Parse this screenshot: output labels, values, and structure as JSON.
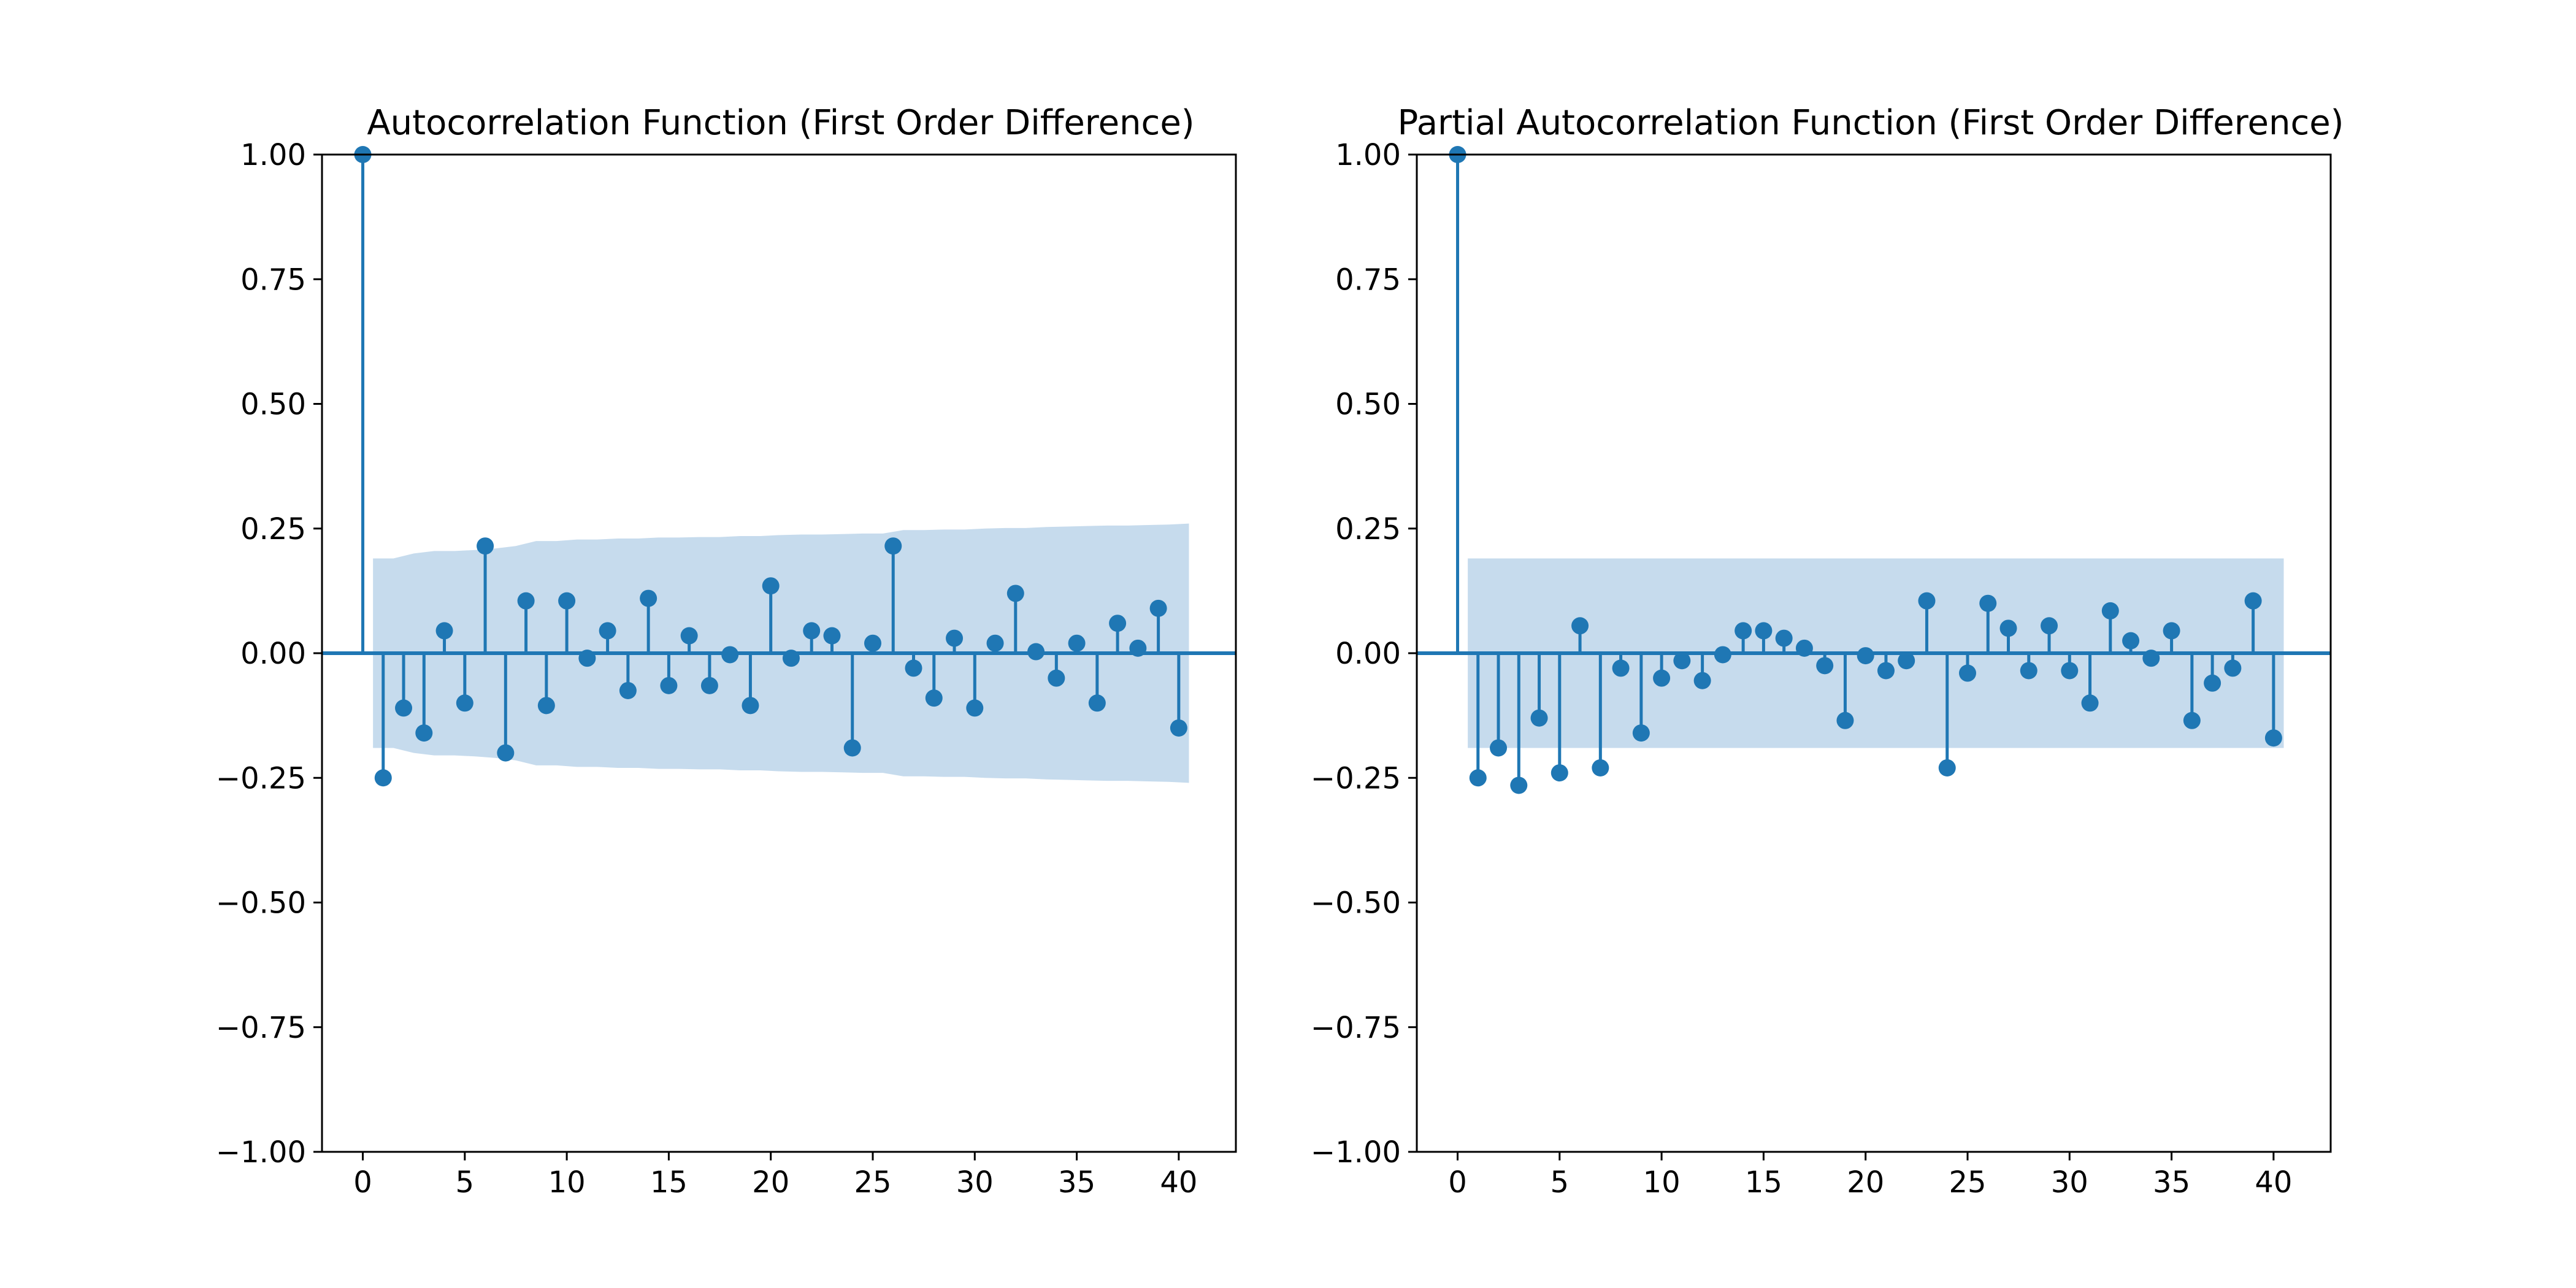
{
  "colors": {
    "stem": "#1f77b4",
    "confidence_band": "#c6dbed",
    "axes": "#000000",
    "background": "#ffffff"
  },
  "chart_data": [
    {
      "type": "stem",
      "title": "Autocorrelation Function (First Order Difference)",
      "xlabel": "",
      "ylabel": "",
      "xlim": [
        -2,
        42.8
      ],
      "ylim": [
        -1.0,
        1.0
      ],
      "x_ticks": [
        0,
        5,
        10,
        15,
        20,
        25,
        30,
        35,
        40
      ],
      "x_tick_labels": [
        "0",
        "5",
        "10",
        "15",
        "20",
        "25",
        "30",
        "35",
        "40"
      ],
      "y_ticks": [
        1.0,
        0.75,
        0.5,
        0.25,
        0.0,
        -0.25,
        -0.5,
        -0.75,
        -1.0
      ],
      "y_tick_labels": [
        "1.00",
        "0.75",
        "0.50",
        "0.25",
        "0.00",
        "−0.25",
        "−0.50",
        "−0.75",
        "−1.00"
      ],
      "grid": false,
      "lags": [
        0,
        1,
        2,
        3,
        4,
        5,
        6,
        7,
        8,
        9,
        10,
        11,
        12,
        13,
        14,
        15,
        16,
        17,
        18,
        19,
        20,
        21,
        22,
        23,
        24,
        25,
        26,
        27,
        28,
        29,
        30,
        31,
        32,
        33,
        34,
        35,
        36,
        37,
        38,
        39,
        40
      ],
      "values": [
        1.0,
        -0.25,
        -0.11,
        -0.16,
        0.045,
        -0.1,
        0.215,
        -0.2,
        0.105,
        -0.105,
        0.105,
        -0.01,
        0.045,
        -0.075,
        0.11,
        -0.065,
        0.035,
        -0.065,
        -0.003,
        -0.105,
        0.135,
        -0.01,
        0.045,
        0.035,
        -0.19,
        0.02,
        0.215,
        -0.03,
        -0.09,
        0.03,
        -0.11,
        0.02,
        0.12,
        0.003,
        -0.05,
        0.02,
        -0.1,
        0.06,
        0.01,
        0.09,
        -0.15
      ],
      "confidence_band": {
        "x_start": 0.5,
        "x_end": 40.5,
        "upper": [
          0.19,
          0.19,
          0.2,
          0.205,
          0.205,
          0.207,
          0.21,
          0.215,
          0.225,
          0.225,
          0.228,
          0.228,
          0.23,
          0.23,
          0.232,
          0.232,
          0.233,
          0.233,
          0.235,
          0.235,
          0.237,
          0.238,
          0.238,
          0.239,
          0.24,
          0.24,
          0.247,
          0.247,
          0.248,
          0.248,
          0.25,
          0.251,
          0.251,
          0.253,
          0.254,
          0.255,
          0.256,
          0.256,
          0.257,
          0.258,
          0.26
        ]
      }
    },
    {
      "type": "stem",
      "title": "Partial Autocorrelation Function (First Order Difference)",
      "xlabel": "",
      "ylabel": "",
      "xlim": [
        -2,
        42.8
      ],
      "ylim": [
        -1.0,
        1.0
      ],
      "x_ticks": [
        0,
        5,
        10,
        15,
        20,
        25,
        30,
        35,
        40
      ],
      "x_tick_labels": [
        "0",
        "5",
        "10",
        "15",
        "20",
        "25",
        "30",
        "35",
        "40"
      ],
      "y_ticks": [
        1.0,
        0.75,
        0.5,
        0.25,
        0.0,
        -0.25,
        -0.5,
        -0.75,
        -1.0
      ],
      "y_tick_labels": [
        "1.00",
        "0.75",
        "0.50",
        "0.25",
        "0.00",
        "−0.25",
        "−0.50",
        "−0.75",
        "−1.00"
      ],
      "grid": false,
      "lags": [
        0,
        1,
        2,
        3,
        4,
        5,
        6,
        7,
        8,
        9,
        10,
        11,
        12,
        13,
        14,
        15,
        16,
        17,
        18,
        19,
        20,
        21,
        22,
        23,
        24,
        25,
        26,
        27,
        28,
        29,
        30,
        31,
        32,
        33,
        34,
        35,
        36,
        37,
        38,
        39,
        40
      ],
      "values": [
        1.0,
        -0.25,
        -0.19,
        -0.265,
        -0.13,
        -0.24,
        0.055,
        -0.23,
        -0.03,
        -0.16,
        -0.05,
        -0.015,
        -0.055,
        -0.003,
        0.045,
        0.045,
        0.03,
        0.01,
        -0.025,
        -0.135,
        -0.005,
        -0.035,
        -0.015,
        0.105,
        -0.23,
        -0.04,
        0.1,
        0.05,
        -0.035,
        0.055,
        -0.035,
        -0.1,
        0.085,
        0.025,
        -0.01,
        0.045,
        -0.135,
        -0.06,
        -0.03,
        0.105,
        -0.17
      ],
      "confidence_band": {
        "x_start": 0.5,
        "x_end": 40.5,
        "upper": [
          0.19,
          0.19
        ]
      }
    }
  ]
}
